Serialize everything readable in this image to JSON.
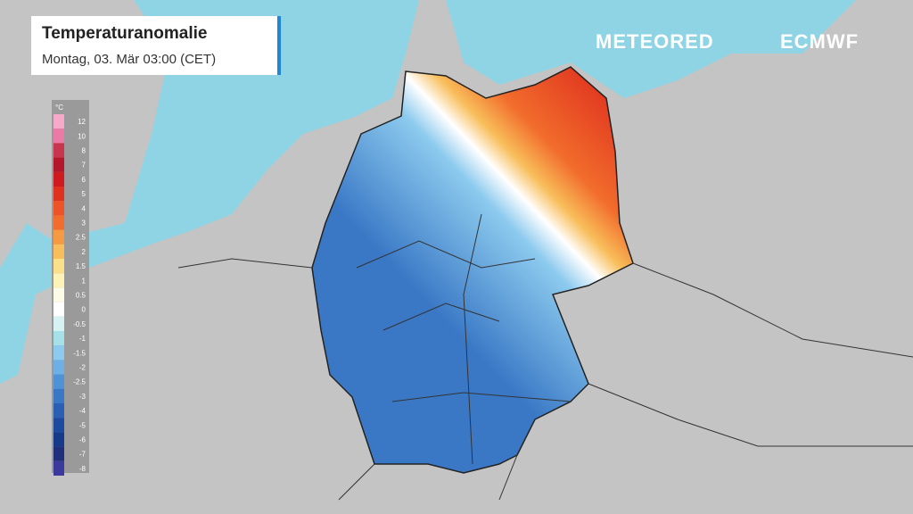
{
  "header": {
    "title": "Temperaturanomalie",
    "subtitle": "Montag, 03. Mär 03:00 (CET)"
  },
  "logos": {
    "meteored": "METEORED",
    "ecmwf": "ECMWF"
  },
  "legend": {
    "unit": "°C",
    "items": [
      {
        "label": "12",
        "color": "#f6a9c8"
      },
      {
        "label": "10",
        "color": "#ec7aa6"
      },
      {
        "label": "8",
        "color": "#c8354f"
      },
      {
        "label": "7",
        "color": "#b4162c"
      },
      {
        "label": "6",
        "color": "#cf1a1f"
      },
      {
        "label": "5",
        "color": "#df321e"
      },
      {
        "label": "4",
        "color": "#ed5326"
      },
      {
        "label": "3",
        "color": "#f26c2c"
      },
      {
        "label": "2.5",
        "color": "#f59a40"
      },
      {
        "label": "2",
        "color": "#f8be5b"
      },
      {
        "label": "1.5",
        "color": "#fbe08b"
      },
      {
        "label": "1",
        "color": "#fdf2b8"
      },
      {
        "label": "0.5",
        "color": "#fdfbe7"
      },
      {
        "label": "0",
        "color": "#ffffff"
      },
      {
        "label": "-0.5",
        "color": "#d6f2f3"
      },
      {
        "label": "-1",
        "color": "#a6e0e9"
      },
      {
        "label": "-1.5",
        "color": "#8ccaee"
      },
      {
        "label": "-2",
        "color": "#6eb0e5"
      },
      {
        "label": "-2.5",
        "color": "#4f93d6"
      },
      {
        "label": "-3",
        "color": "#3a78c6"
      },
      {
        "label": "-4",
        "color": "#2a5fb3"
      },
      {
        "label": "-5",
        "color": "#1d4a9e"
      },
      {
        "label": "-6",
        "color": "#163a8a"
      },
      {
        "label": "-7",
        "color": "#1f2f7c"
      },
      {
        "label": "-8",
        "color": "#3b3a9c"
      }
    ]
  }
}
